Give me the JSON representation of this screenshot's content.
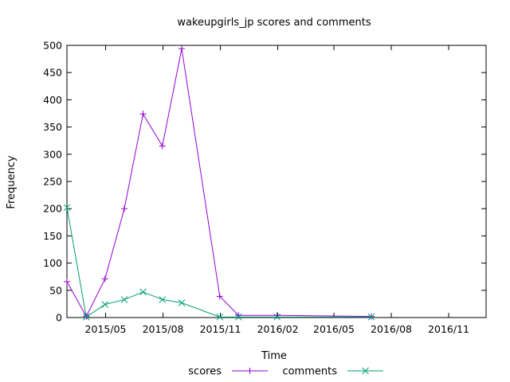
{
  "chart_data": {
    "type": "line",
    "title": "wakeupgirls_jp scores and comments",
    "xlabel": "Time",
    "ylabel": "Frequency",
    "ylim": [
      0,
      500
    ],
    "xlim": [
      "2015-02-28",
      "2016-12-31"
    ],
    "yticks": [
      0,
      50,
      100,
      150,
      200,
      250,
      300,
      350,
      400,
      450,
      500
    ],
    "xticks": [
      {
        "date": "2015-05-01",
        "label": "2015/05"
      },
      {
        "date": "2015-08-01",
        "label": "2015/08"
      },
      {
        "date": "2015-11-01",
        "label": "2015/11"
      },
      {
        "date": "2016-02-01",
        "label": "2016/02"
      },
      {
        "date": "2016-05-01",
        "label": "2016/05"
      },
      {
        "date": "2016-08-01",
        "label": "2016/08"
      },
      {
        "date": "2016-11-01",
        "label": "2016/11"
      }
    ],
    "grid": false,
    "legend_position": "bottom-center",
    "series": [
      {
        "name": "scores",
        "color": "#9400d3",
        "marker": "plus",
        "points": [
          {
            "x": "2015-02-28",
            "y": 66
          },
          {
            "x": "2015-03-31",
            "y": 2
          },
          {
            "x": "2015-04-30",
            "y": 71
          },
          {
            "x": "2015-05-31",
            "y": 200
          },
          {
            "x": "2015-06-30",
            "y": 374
          },
          {
            "x": "2015-07-31",
            "y": 315
          },
          {
            "x": "2015-08-31",
            "y": 494
          },
          {
            "x": "2015-10-31",
            "y": 39
          },
          {
            "x": "2015-11-30",
            "y": 4
          },
          {
            "x": "2016-01-31",
            "y": 4
          },
          {
            "x": "2016-06-30",
            "y": 2
          }
        ]
      },
      {
        "name": "comments",
        "color": "#009e73",
        "marker": "cross",
        "points": [
          {
            "x": "2015-02-28",
            "y": 202
          },
          {
            "x": "2015-03-31",
            "y": 1
          },
          {
            "x": "2015-04-30",
            "y": 24
          },
          {
            "x": "2015-05-31",
            "y": 33
          },
          {
            "x": "2015-06-30",
            "y": 47
          },
          {
            "x": "2015-07-31",
            "y": 33
          },
          {
            "x": "2015-08-31",
            "y": 27
          },
          {
            "x": "2015-10-31",
            "y": 1
          },
          {
            "x": "2015-11-30",
            "y": 1
          },
          {
            "x": "2016-01-31",
            "y": 1
          },
          {
            "x": "2016-06-30",
            "y": 1
          }
        ]
      }
    ]
  }
}
